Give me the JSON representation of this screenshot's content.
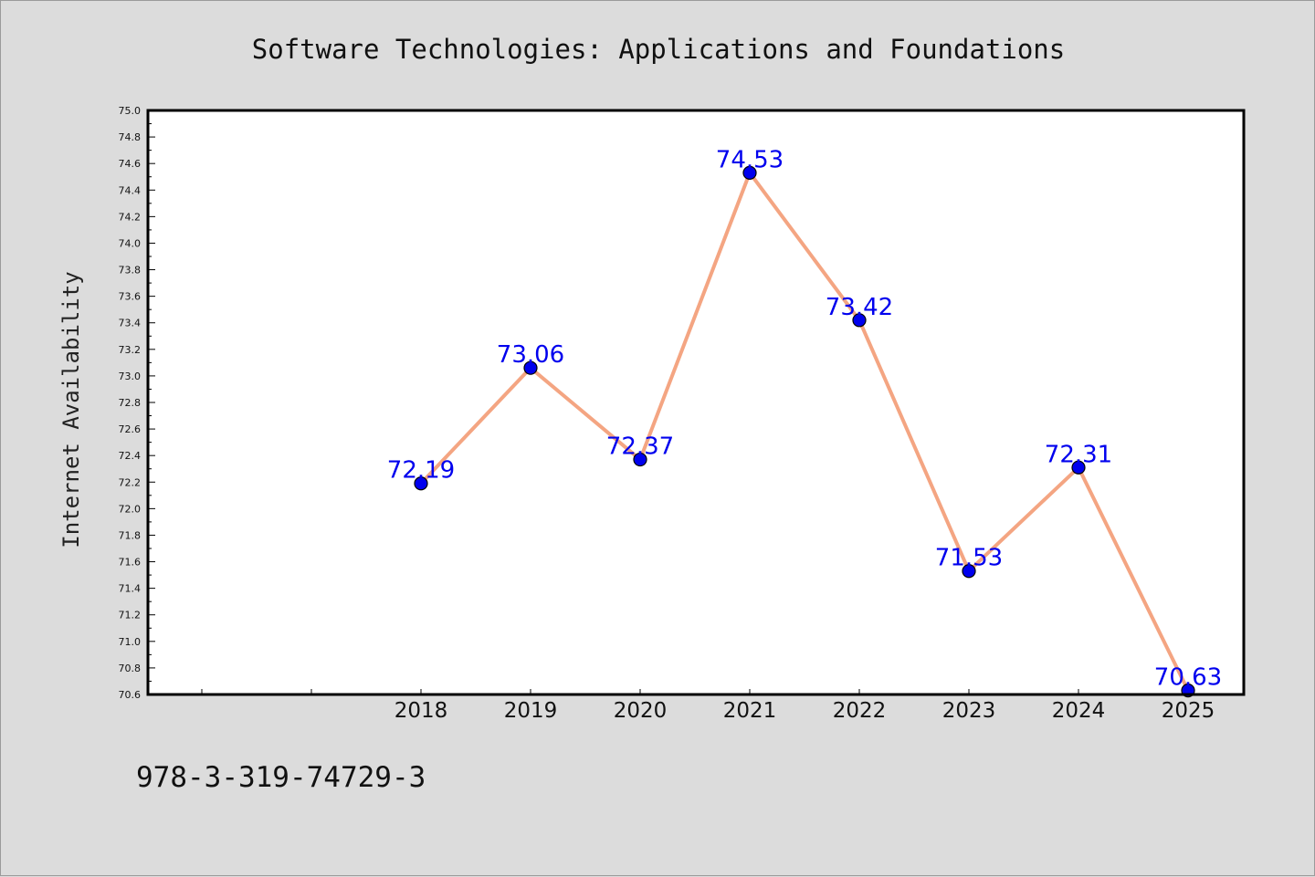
{
  "footnote": "978-3-319-74729-3",
  "chart_data": {
    "type": "line",
    "title": "Software Technologies: Applications and Foundations",
    "xlabel": "",
    "ylabel": "Internet Availability",
    "categories": [
      "2018",
      "2019",
      "2020",
      "2021",
      "2022",
      "2023",
      "2024",
      "2025"
    ],
    "series": [
      {
        "values": [
          72.19,
          73.06,
          72.37,
          74.53,
          73.42,
          71.53,
          72.31,
          70.63
        ],
        "data_labels": [
          "72.19",
          "73.06",
          "72.37",
          "74.53",
          "73.42",
          "71.53",
          "72.31",
          "70.63"
        ],
        "line_color": "#f4a582",
        "marker_color": "#0000ee"
      }
    ],
    "ylim": [
      70.6,
      75.0
    ],
    "yticks": [
      "70.6",
      "70.8",
      "71.0",
      "71.2",
      "71.4",
      "71.6",
      "71.8",
      "72.0",
      "72.2",
      "72.4",
      "72.6",
      "72.8",
      "73.0",
      "73.2",
      "73.4",
      "73.6",
      "73.8",
      "74.0",
      "74.2",
      "74.4",
      "74.6",
      "74.8",
      "75.0"
    ],
    "grid": false,
    "legend": "none",
    "plot_background": "#ffffff",
    "figure_background": "#dcdcdc"
  }
}
